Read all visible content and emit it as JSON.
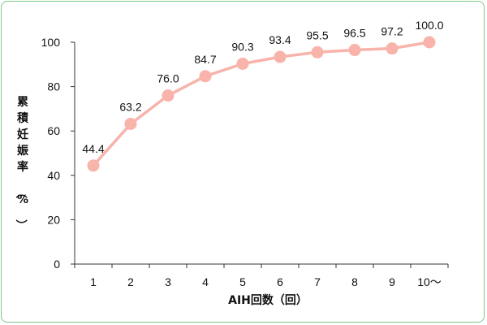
{
  "chart_data": {
    "type": "line",
    "title": "",
    "xlabel": "AIH回数（回）",
    "ylabel": "累積妊娠率（%）",
    "categories": [
      "1",
      "2",
      "3",
      "4",
      "5",
      "6",
      "7",
      "8",
      "9",
      "10〜"
    ],
    "series": [
      {
        "values": [
          44.4,
          63.2,
          76.0,
          84.7,
          90.3,
          93.4,
          95.5,
          96.5,
          97.2,
          100.0
        ],
        "data_labels": [
          "44.4",
          "63.2",
          "76.0",
          "84.7",
          "90.3",
          "93.4",
          "95.5",
          "96.5",
          "97.2",
          "100.0"
        ]
      }
    ],
    "ylim": [
      0,
      100
    ],
    "yticks": [
      "0",
      "20",
      "40",
      "60",
      "80",
      "100"
    ],
    "grid": false,
    "legend": "none",
    "colors": {
      "line": "#f8b3aa",
      "marker": "#f8b3aa",
      "axis": "#333333",
      "frame": "#7cc88a"
    }
  }
}
